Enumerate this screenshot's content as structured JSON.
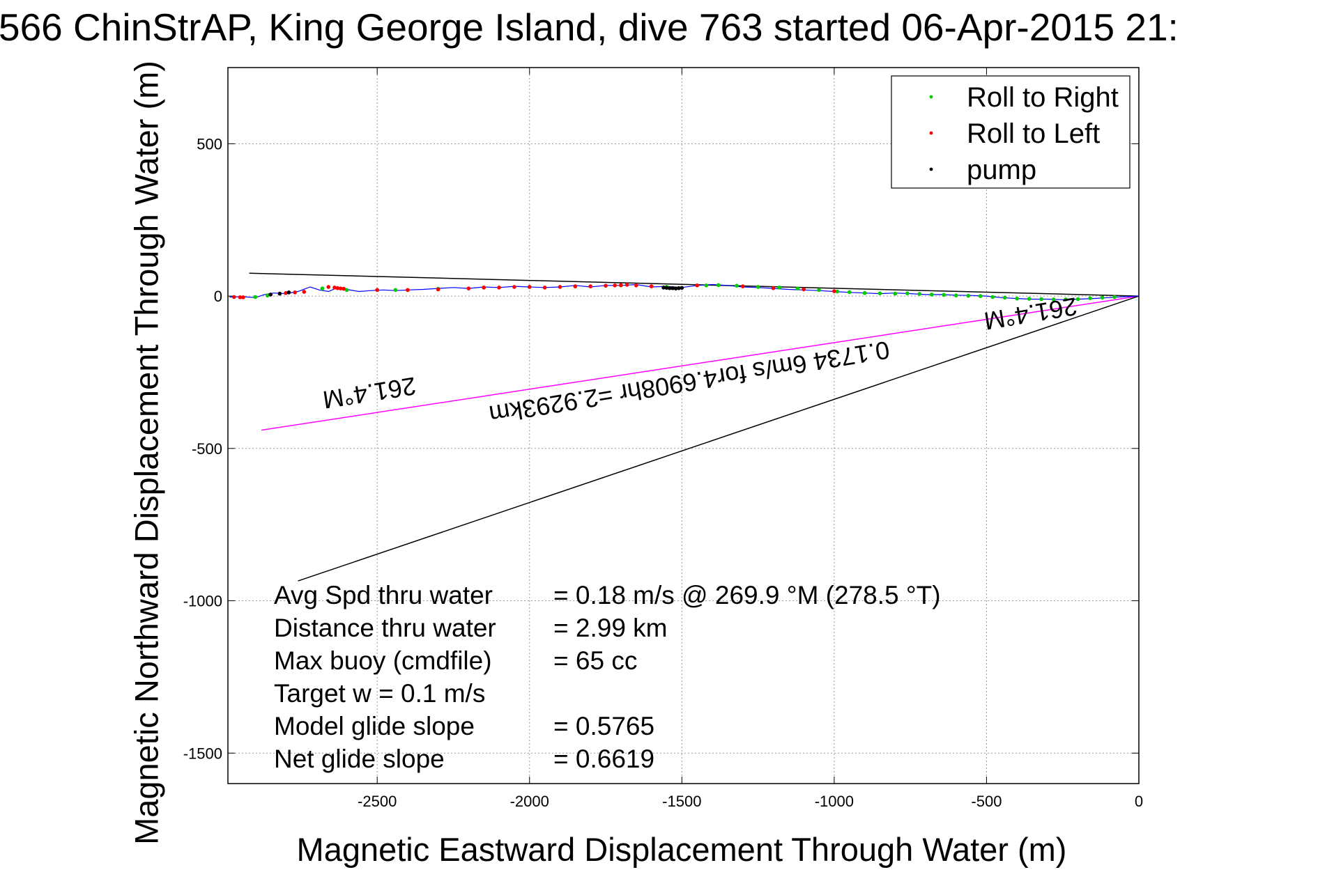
{
  "chart_data": {
    "type": "scatter",
    "title": "566 ChinStrAP, King George Island, dive 763 started 06-Apr-2015 21:",
    "xlabel": "Magnetic Eastward Displacement Through Water (m)",
    "ylabel": "Magnetic Northward Displacement Through Water (m)",
    "xlim": [
      -2990,
      0
    ],
    "ylim": [
      -1600,
      750
    ],
    "xticks": [
      -2500,
      -2000,
      -1500,
      -1000,
      -500,
      0
    ],
    "yticks": [
      500,
      0,
      -500,
      -1000,
      -1500
    ],
    "grid": true,
    "legend_position": "top-right",
    "legend": [
      {
        "label": "Roll to Right",
        "color": "#00cc00"
      },
      {
        "label": "Roll to Left",
        "color": "#ff0000"
      },
      {
        "label": "pump",
        "color": "#000000"
      }
    ],
    "track": {
      "color": "#0000ff",
      "x": [
        -2985,
        -2940,
        -2900,
        -2870,
        -2840,
        -2800,
        -2760,
        -2720,
        -2690,
        -2660,
        -2630,
        -2600,
        -2560,
        -2520,
        -2480,
        -2440,
        -2400,
        -2350,
        -2300,
        -2250,
        -2200,
        -2150,
        -2100,
        -2050,
        -2000,
        -1950,
        -1900,
        -1850,
        -1800,
        -1750,
        -1700,
        -1650,
        -1600,
        -1550,
        -1500,
        -1450,
        -1400,
        -1350,
        -1300,
        -1250,
        -1200,
        -1150,
        -1100,
        -1050,
        -1000,
        -950,
        -900,
        -850,
        -800,
        -750,
        -700,
        -650,
        -600,
        -550,
        -500,
        -450,
        -400,
        -350,
        -300,
        -250,
        -200,
        -150,
        -100,
        -50,
        0
      ],
      "y": [
        -3,
        -2,
        -5,
        5,
        10,
        8,
        15,
        30,
        20,
        15,
        28,
        22,
        15,
        18,
        20,
        18,
        20,
        22,
        25,
        28,
        25,
        30,
        28,
        32,
        30,
        28,
        30,
        35,
        30,
        35,
        35,
        38,
        30,
        32,
        28,
        35,
        38,
        35,
        30,
        28,
        25,
        22,
        20,
        18,
        15,
        12,
        10,
        8,
        10,
        8,
        5,
        5,
        3,
        2,
        0,
        -5,
        -8,
        -10,
        -10,
        -12,
        -10,
        -8,
        -5,
        -2,
        0
      ]
    },
    "roll_right": {
      "x": [
        -2900,
        -2860,
        -2680,
        -2600,
        -2440,
        -2300,
        -2150,
        -2000,
        -1850,
        -1700,
        -1550,
        -1420,
        -1380,
        -1320,
        -1250,
        -1180,
        -1120,
        -1050,
        -990,
        -950,
        -900,
        -850,
        -800,
        -760,
        -720,
        -680,
        -640,
        -600,
        -560,
        -520,
        -480,
        -440,
        -400,
        -360,
        -320,
        -280,
        -240,
        -200,
        -160,
        -120,
        -80
      ],
      "y": [
        -3,
        2,
        25,
        20,
        20,
        24,
        28,
        30,
        32,
        35,
        30,
        35,
        36,
        34,
        30,
        28,
        25,
        20,
        15,
        13,
        10,
        9,
        8,
        9,
        7,
        5,
        4,
        2,
        1,
        0,
        -3,
        -5,
        -8,
        -9,
        -10,
        -11,
        -11,
        -10,
        -7,
        -5,
        -3
      ]
    },
    "roll_left": {
      "x": [
        -2970,
        -2950,
        -2940,
        -2800,
        -2770,
        -2740,
        -2660,
        -2640,
        -2630,
        -2620,
        -2610,
        -2500,
        -2400,
        -2300,
        -2200,
        -2150,
        -2100,
        -2050,
        -2000,
        -1950,
        -1900,
        -1850,
        -1800,
        -1750,
        -1720,
        -1700,
        -1680,
        -1650,
        -1600,
        -1450,
        -1300,
        -1200,
        -1100,
        -1000
      ],
      "y": [
        -3,
        -4,
        -4,
        10,
        12,
        14,
        30,
        28,
        26,
        25,
        24,
        20,
        20,
        22,
        25,
        28,
        28,
        30,
        30,
        28,
        30,
        32,
        32,
        34,
        35,
        36,
        37,
        35,
        32,
        35,
        32,
        26,
        22,
        16
      ]
    },
    "pump": {
      "x": [
        -2850,
        -2820,
        -2790,
        -1560,
        -1550,
        -1540,
        -1530,
        -1520,
        -1510,
        -1500
      ],
      "y": [
        5,
        8,
        12,
        28,
        27,
        26,
        26,
        25,
        26,
        27
      ]
    },
    "reference_lines": [
      {
        "name": "upper",
        "color": "#000000",
        "x": [
          -2920,
          0
        ],
        "y": [
          75,
          0
        ]
      },
      {
        "name": "magenta",
        "color": "#ff00ff",
        "x": [
          -2880,
          0
        ],
        "y": [
          -440,
          0
        ]
      },
      {
        "name": "lower",
        "color": "#000000",
        "x": [
          -2760,
          0
        ],
        "y": [
          -935,
          0
        ]
      }
    ],
    "annotations": [
      {
        "text": "0.1734 6m/s for4.6908hr =2.9293km",
        "x": -1480,
        "y": -255,
        "angle": 170.7
      },
      {
        "text": "261.4°M",
        "x": -360,
        "y": -30,
        "angle": 170.5
      },
      {
        "text": "261.4°M",
        "x": -2530,
        "y": -290,
        "angle": 171
      }
    ],
    "stats": [
      {
        "label": "Avg Spd thru water",
        "value": "=  0.18 m/s @ 269.9 °M (278.5 °T)"
      },
      {
        "label": "Distance thru water",
        "value": "=  2.99 km"
      },
      {
        "label": "Max buoy (cmdfile)",
        "value": "= 65 cc"
      },
      {
        "label": "Target w    = 0.1 m/s",
        "value": ""
      },
      {
        "label": "Model glide slope",
        "value": "= 0.5765"
      },
      {
        "label": "Net glide slope",
        "value": "= 0.6619"
      }
    ]
  }
}
